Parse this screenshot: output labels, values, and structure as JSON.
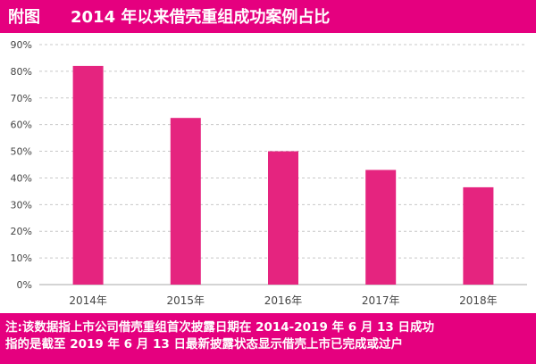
{
  "header": {
    "figure_label": "附图",
    "title": "2014 年以来借壳重组成功案例占比"
  },
  "chart_data": {
    "type": "bar",
    "title": "2014 年以来借壳重组成功案例占比",
    "categories": [
      "2014年",
      "2015年",
      "2016年",
      "2017年",
      "2018年"
    ],
    "values": [
      82,
      62.5,
      50,
      43,
      36.5
    ],
    "y_ticks": [
      "0%",
      "10%",
      "20%",
      "30%",
      "40%",
      "50%",
      "60%",
      "70%",
      "80%",
      "90%"
    ],
    "ylim": [
      0,
      90
    ],
    "grid": "horizontal dashed",
    "bar_color": "#e5247f"
  },
  "footer": {
    "line1": "注:该数据指上市公司借壳重组首次披露日期在 2014-2019 年 6 月 13 日成功",
    "line2": "指的是截至 2019 年 6 月 13 日最新披露状态显示借壳上市已完成或过户"
  },
  "colors": {
    "brand": "#e5007f",
    "bar": "#e5247f"
  }
}
